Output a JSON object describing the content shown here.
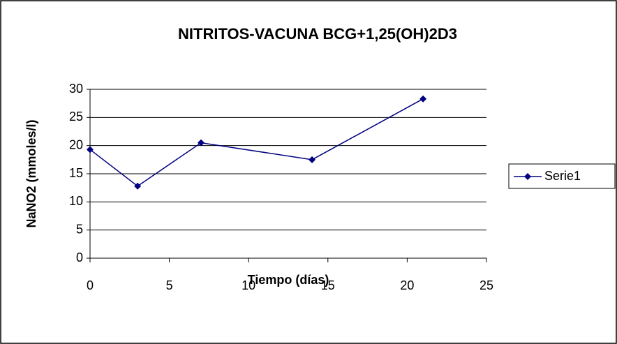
{
  "chart_data": {
    "type": "line",
    "title": "NITRITOS-VACUNA BCG+1,25(OH)2D3",
    "x_label": "Tiempo (días)",
    "y_label": "NaNO2 (mmoles/l)",
    "x": [
      0,
      3,
      7,
      14,
      21
    ],
    "series": [
      {
        "name": "Serie1",
        "color": "#000080",
        "values": [
          19.3,
          12.8,
          20.5,
          17.5,
          28.3
        ]
      }
    ],
    "xlim": [
      0,
      25
    ],
    "xticks": [
      0,
      5,
      10,
      15,
      20,
      25
    ],
    "ylim": [
      0,
      30
    ],
    "yticks": [
      0,
      5,
      10,
      15,
      20,
      25,
      30
    ],
    "grid": true,
    "legend": "right"
  }
}
